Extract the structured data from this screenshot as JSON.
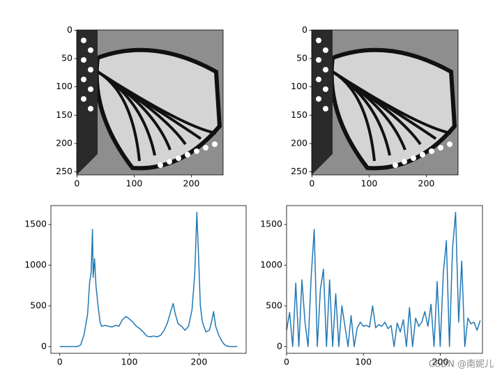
{
  "chart_data": [
    {
      "type": "image",
      "xlim": [
        -0.5,
        255.5
      ],
      "ylim": [
        255.5,
        -0.5
      ],
      "xticks": [
        0,
        100,
        200
      ],
      "yticks": [
        0,
        50,
        100,
        150,
        200,
        250
      ]
    },
    {
      "type": "image",
      "xlim": [
        -0.5,
        255.5
      ],
      "ylim": [
        255.5,
        -0.5
      ],
      "xticks": [
        0,
        100,
        200
      ],
      "yticks": [
        0,
        50,
        100,
        150,
        200,
        250
      ]
    },
    {
      "type": "line",
      "color": "#1f77b4",
      "xlim": [
        -12.75,
        267.75
      ],
      "ylim": [
        -82.5,
        1732.5
      ],
      "xticks": [
        0,
        100,
        200
      ],
      "yticks": [
        0,
        500,
        1000,
        1500
      ],
      "x": [
        0,
        25,
        30,
        35,
        40,
        43,
        45,
        47,
        48,
        50,
        52,
        55,
        58,
        60,
        65,
        70,
        75,
        80,
        85,
        90,
        95,
        100,
        105,
        110,
        115,
        120,
        125,
        130,
        135,
        140,
        145,
        150,
        155,
        160,
        163,
        166,
        170,
        175,
        180,
        185,
        190,
        194,
        197,
        199,
        202,
        205,
        210,
        215,
        218,
        221,
        224,
        228,
        232,
        236,
        240,
        245,
        255
      ],
      "values": [
        0,
        0,
        20,
        150,
        400,
        800,
        900,
        1440,
        850,
        1080,
        750,
        500,
        300,
        250,
        260,
        250,
        240,
        260,
        250,
        330,
        370,
        340,
        300,
        250,
        220,
        180,
        130,
        120,
        130,
        120,
        140,
        200,
        300,
        450,
        530,
        400,
        280,
        250,
        200,
        250,
        450,
        900,
        1650,
        1200,
        500,
        300,
        180,
        200,
        300,
        430,
        250,
        150,
        80,
        30,
        5,
        0,
        0
      ]
    },
    {
      "type": "line",
      "color": "#1f77b4",
      "xlim": [
        0,
        255
      ],
      "ylim": [
        -82.5,
        1732.5
      ],
      "xticks": [
        0,
        100,
        200
      ],
      "yticks": [
        0,
        500,
        1000,
        1500
      ],
      "x": [
        0,
        4,
        8,
        12,
        16,
        20,
        24,
        28,
        32,
        36,
        40,
        44,
        48,
        52,
        56,
        60,
        64,
        68,
        72,
        76,
        80,
        84,
        88,
        92,
        96,
        100,
        104,
        108,
        112,
        116,
        120,
        124,
        128,
        132,
        136,
        140,
        144,
        148,
        152,
        156,
        160,
        164,
        168,
        172,
        176,
        180,
        184,
        188,
        192,
        196,
        200,
        204,
        208,
        212,
        216,
        220,
        224,
        228,
        232,
        236,
        240,
        244,
        248,
        252
      ],
      "values": [
        200,
        420,
        0,
        780,
        0,
        820,
        300,
        0,
        850,
        1440,
        0,
        700,
        950,
        0,
        820,
        0,
        650,
        0,
        500,
        250,
        0,
        380,
        0,
        230,
        300,
        250,
        260,
        240,
        500,
        230,
        270,
        250,
        300,
        220,
        260,
        0,
        290,
        180,
        330,
        0,
        480,
        0,
        350,
        250,
        300,
        430,
        250,
        520,
        0,
        800,
        0,
        900,
        1300,
        0,
        1200,
        1650,
        300,
        1050,
        0,
        350,
        280,
        300,
        200,
        320
      ]
    }
  ],
  "watermark": "CSDN @南妮儿"
}
